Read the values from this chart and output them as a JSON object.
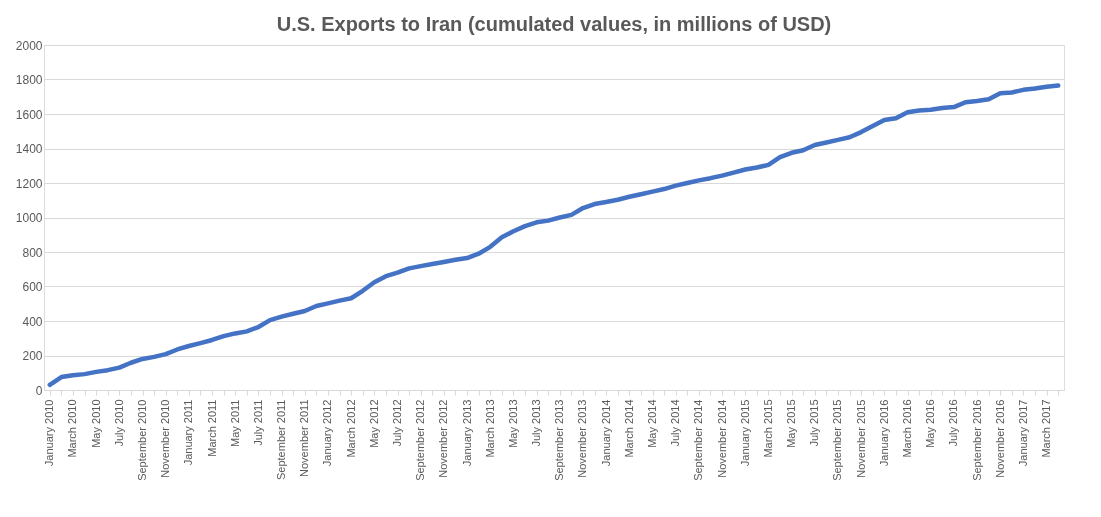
{
  "chart_data": {
    "type": "line",
    "title": "U.S. Exports to Iran (cumulated values, in millions of USD)",
    "categories": [
      "January 2010",
      null,
      "March 2010",
      null,
      "May 2010",
      null,
      "July 2010",
      null,
      "September 2010",
      null,
      "November 2010",
      null,
      "January 2011",
      null,
      "March 2011",
      null,
      "May 2011",
      null,
      "July 2011",
      null,
      "September 2011",
      null,
      "November 2011",
      null,
      "January 2012",
      null,
      "March 2012",
      null,
      "May 2012",
      null,
      "July 2012",
      null,
      "September 2012",
      null,
      "November 2012",
      null,
      "January 2013",
      null,
      "March 2013",
      null,
      "May 2013",
      null,
      "July 2013",
      null,
      "September 2013",
      null,
      "November 2013",
      null,
      "January 2014",
      null,
      "March 2014",
      null,
      "May 2014",
      null,
      "July 2014",
      null,
      "September 2014",
      null,
      "November 2014",
      null,
      "January 2015",
      null,
      "March 2015",
      null,
      "May 2015",
      null,
      "July 2015",
      null,
      "September 2015",
      null,
      "November 2015",
      null,
      "January 2016",
      null,
      "March 2016",
      null,
      "May 2016",
      null,
      "July 2016",
      null,
      "September 2016",
      null,
      "November 2016",
      null,
      "January 2017",
      null,
      "March 2017",
      null
    ],
    "series": [
      {
        "color": "#4472c4",
        "values": [
          30,
          75,
          85,
          92,
          105,
          115,
          130,
          158,
          180,
          192,
          208,
          235,
          255,
          272,
          290,
          312,
          328,
          340,
          365,
          405,
          425,
          442,
          458,
          487,
          502,
          518,
          532,
          575,
          625,
          660,
          680,
          705,
          718,
          730,
          742,
          755,
          765,
          790,
          830,
          885,
          920,
          950,
          972,
          982,
          1000,
          1015,
          1055,
          1078,
          1090,
          1103,
          1120,
          1135,
          1150,
          1165,
          1185,
          1200,
          1215,
          1228,
          1243,
          1260,
          1278,
          1290,
          1305,
          1350,
          1375,
          1390,
          1420,
          1435,
          1450,
          1465,
          1495,
          1530,
          1565,
          1575,
          1610,
          1620,
          1625,
          1635,
          1640,
          1668,
          1675,
          1685,
          1720,
          1725,
          1740,
          1748,
          1758,
          1765
        ]
      }
    ],
    "ylim": [
      0,
      2000
    ],
    "yticks": [
      0,
      200,
      400,
      600,
      800,
      1000,
      1200,
      1400,
      1600,
      1800,
      2000
    ],
    "grid": "y",
    "legend": false,
    "marker": "none",
    "line_style": "solid"
  }
}
